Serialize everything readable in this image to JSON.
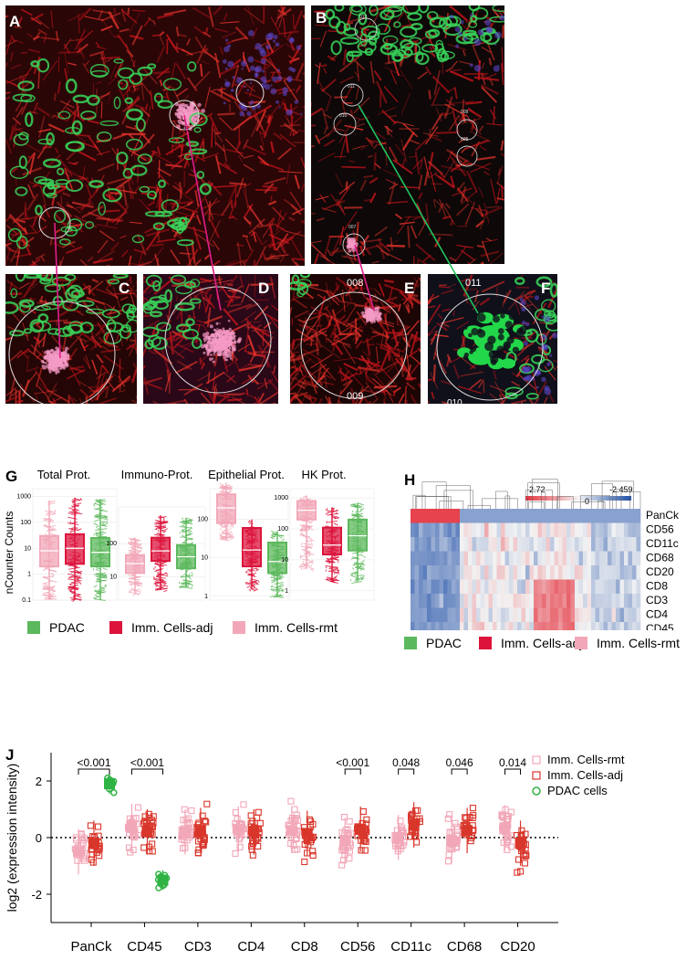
{
  "panels": {
    "A": "A",
    "B": "B",
    "C": "C",
    "D": "D",
    "E": "E",
    "F": "F",
    "G": "G",
    "H": "H",
    "J": "J"
  },
  "panel_b_labels": [
    "012",
    "011",
    "010",
    "008",
    "009",
    "007"
  ],
  "panel_e_labels": {
    "top": "008",
    "bottom": "009"
  },
  "panel_f_labels": {
    "top": "011",
    "bottom": "010"
  },
  "colors": {
    "pdac": "#5cb85c",
    "imm_adj": "#dc143c",
    "imm_rmt": "#f2a7b8",
    "magenta": "#e0208a",
    "green_line": "#22c35e",
    "heat_high": "#e5303c",
    "heat_mid": "#f4f4f4",
    "heat_low": "#1f4fa8"
  },
  "chart_data": [
    {
      "id": "G",
      "type": "box",
      "ylabel": "nCounter Counts",
      "subplots": [
        {
          "title": "Total Prot.",
          "yticks": [
            "0.1",
            "1",
            "10",
            "100",
            "1000"
          ]
        },
        {
          "title": "Immuno-Prot.",
          "yticks": [
            "10",
            "100"
          ]
        },
        {
          "title": "Epithelial Prot.",
          "yticks": [
            "1",
            "10",
            "100"
          ]
        },
        {
          "title": "HK Prot.",
          "yticks": [
            "1",
            "10",
            "100",
            "1000"
          ]
        }
      ],
      "series": [
        {
          "name": "PDAC"
        },
        {
          "name": "Imm. Cells-adj"
        },
        {
          "name": "Imm. Cells-rmt"
        }
      ],
      "boxes": [
        [
          {
            "q1": 2,
            "med": 7,
            "q3": 25,
            "lo": 0.1,
            "hi": 800
          },
          {
            "q1": 2.5,
            "med": 10,
            "q3": 35,
            "lo": 0.1,
            "hi": 900
          },
          {
            "q1": 2,
            "med": 8,
            "q3": 30,
            "lo": 0.1,
            "hi": 700
          }
        ],
        [
          {
            "q1": 18,
            "med": 40,
            "q3": 90,
            "lo": 5,
            "hi": 600
          },
          {
            "q1": 30,
            "med": 60,
            "q3": 150,
            "lo": 4,
            "hi": 700
          },
          {
            "q1": 13,
            "med": 25,
            "q3": 45,
            "lo": 3,
            "hi": 150
          }
        ],
        [
          {
            "q1": 4,
            "med": 8,
            "q3": 25,
            "lo": 1,
            "hi": 50
          },
          {
            "q1": 6,
            "med": 16,
            "q3": 60,
            "lo": 1.5,
            "hi": 100
          },
          {
            "q1": 80,
            "med": 200,
            "q3": 450,
            "lo": 30,
            "hi": 900
          }
        ],
        [
          {
            "q1": 20,
            "med": 60,
            "q3": 200,
            "lo": 2,
            "hi": 700
          },
          {
            "q1": 15,
            "med": 30,
            "q3": 110,
            "lo": 2,
            "hi": 500
          },
          {
            "q1": 200,
            "med": 400,
            "q3": 800,
            "lo": 5,
            "hi": 1200
          }
        ]
      ]
    },
    {
      "id": "H",
      "type": "heatmap",
      "color_range": {
        "max": "2.72",
        "mid": "-0",
        "min": "-2.459"
      },
      "rows": [
        "PanCk",
        "CD56",
        "CD11c",
        "CD68",
        "CD20",
        "CD8",
        "CD3",
        "CD4",
        "CD45"
      ],
      "legend": [
        "PDAC",
        "Imm. Cells-adj",
        "Imm. Cells-rmt"
      ]
    },
    {
      "id": "J",
      "type": "scatter",
      "ylabel": "log2 (expression intensity)",
      "ylim": [
        -3,
        3
      ],
      "yticks": [
        -2,
        0,
        2
      ],
      "categories": [
        "PanCk",
        "CD45",
        "CD3",
        "CD4",
        "CD8",
        "CD56",
        "CD11c",
        "CD68",
        "CD20"
      ],
      "series": [
        {
          "name": "Imm. Cells-rmt",
          "means": [
            -0.5,
            0.4,
            0.2,
            0.3,
            0.25,
            -0.1,
            0.0,
            -0.1,
            0.35
          ]
        },
        {
          "name": "Imm. Cells-adj",
          "means": [
            -0.2,
            0.2,
            0.25,
            0.2,
            0.15,
            0.3,
            0.45,
            0.25,
            -0.2
          ]
        },
        {
          "name": "PDAC cells",
          "means": [
            1.9,
            -1.5,
            null,
            null,
            null,
            null,
            null,
            null,
            null
          ]
        }
      ],
      "annotations": [
        {
          "text": "<0.001",
          "from": 0,
          "to": 0,
          "span": "rmt-pdac"
        },
        {
          "text": "<0.001",
          "from": 1,
          "to": 1,
          "span": "rmt-pdac"
        },
        {
          "text": "<0.001",
          "from": 5,
          "to": 5,
          "span": "rmt-adj"
        },
        {
          "text": "0.048",
          "from": 6,
          "to": 6,
          "span": "rmt-adj"
        },
        {
          "text": "0.046",
          "from": 7,
          "to": 7,
          "span": "rmt-adj"
        },
        {
          "text": "0.014",
          "from": 8,
          "to": 8,
          "span": "rmt-adj"
        }
      ]
    }
  ]
}
